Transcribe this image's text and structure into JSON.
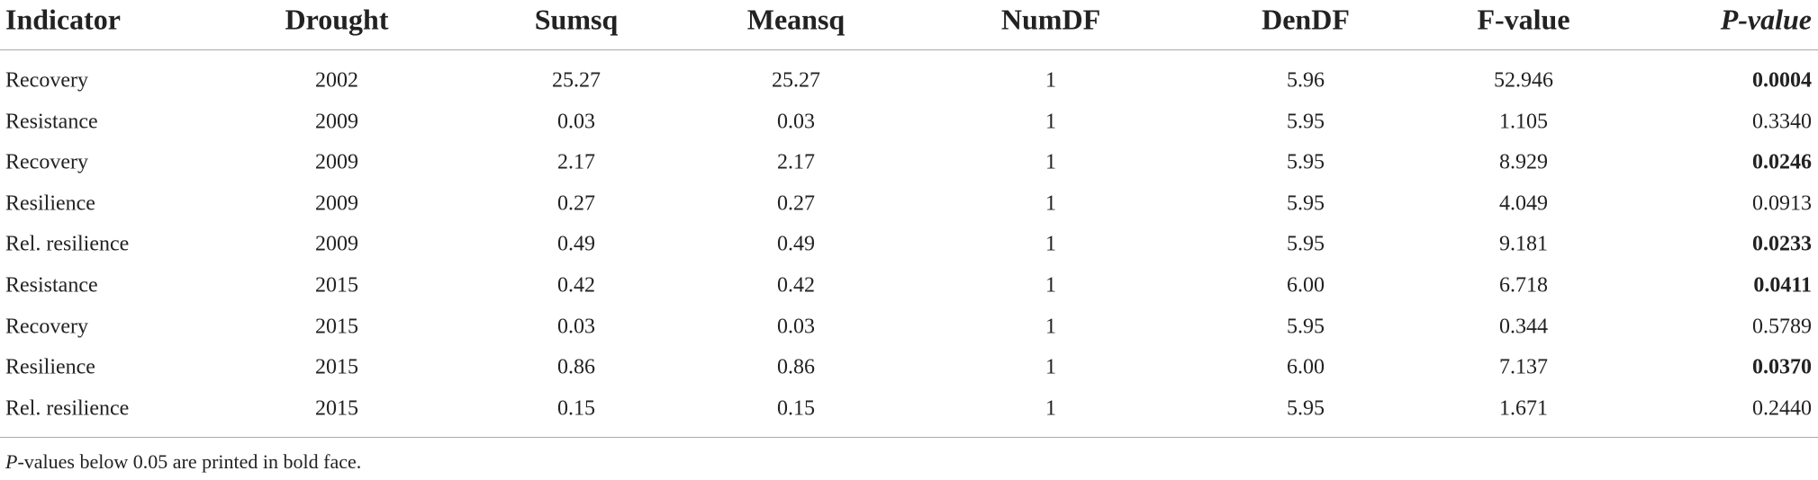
{
  "table": {
    "header": [
      "Indicator",
      "Drought",
      "Sumsq",
      "Meansq",
      "NumDF",
      "DenDF",
      "F-value",
      "P-value"
    ],
    "rows": [
      [
        "Recovery",
        "2002",
        "25.27",
        "25.27",
        "1",
        "5.96",
        "52.946",
        "0.0004"
      ],
      [
        "Resistance",
        "2009",
        "0.03",
        "0.03",
        "1",
        "5.95",
        "1.105",
        "0.3340"
      ],
      [
        "Recovery",
        "2009",
        "2.17",
        "2.17",
        "1",
        "5.95",
        "8.929",
        "0.0246"
      ],
      [
        "Resilience",
        "2009",
        "0.27",
        "0.27",
        "1",
        "5.95",
        "4.049",
        "0.0913"
      ],
      [
        "Rel. resilience",
        "2009",
        "0.49",
        "0.49",
        "1",
        "5.95",
        "9.181",
        "0.0233"
      ],
      [
        "Resistance",
        "2015",
        "0.42",
        "0.42",
        "1",
        "6.00",
        "6.718",
        "0.0411"
      ],
      [
        "Recovery",
        "2015",
        "0.03",
        "0.03",
        "1",
        "5.95",
        "0.344",
        "0.5789"
      ],
      [
        "Resilience",
        "2015",
        "0.86",
        "0.86",
        "1",
        "6.00",
        "7.137",
        "0.0370"
      ],
      [
        "Rel. resilience",
        "2015",
        "0.15",
        "0.15",
        "1",
        "5.95",
        "1.671",
        "0.2440"
      ]
    ],
    "bold_p": [
      true,
      false,
      true,
      false,
      true,
      true,
      false,
      true,
      false
    ]
  },
  "footnote": {
    "italic": "P",
    "text": "-values below 0.05 are printed in bold face."
  }
}
